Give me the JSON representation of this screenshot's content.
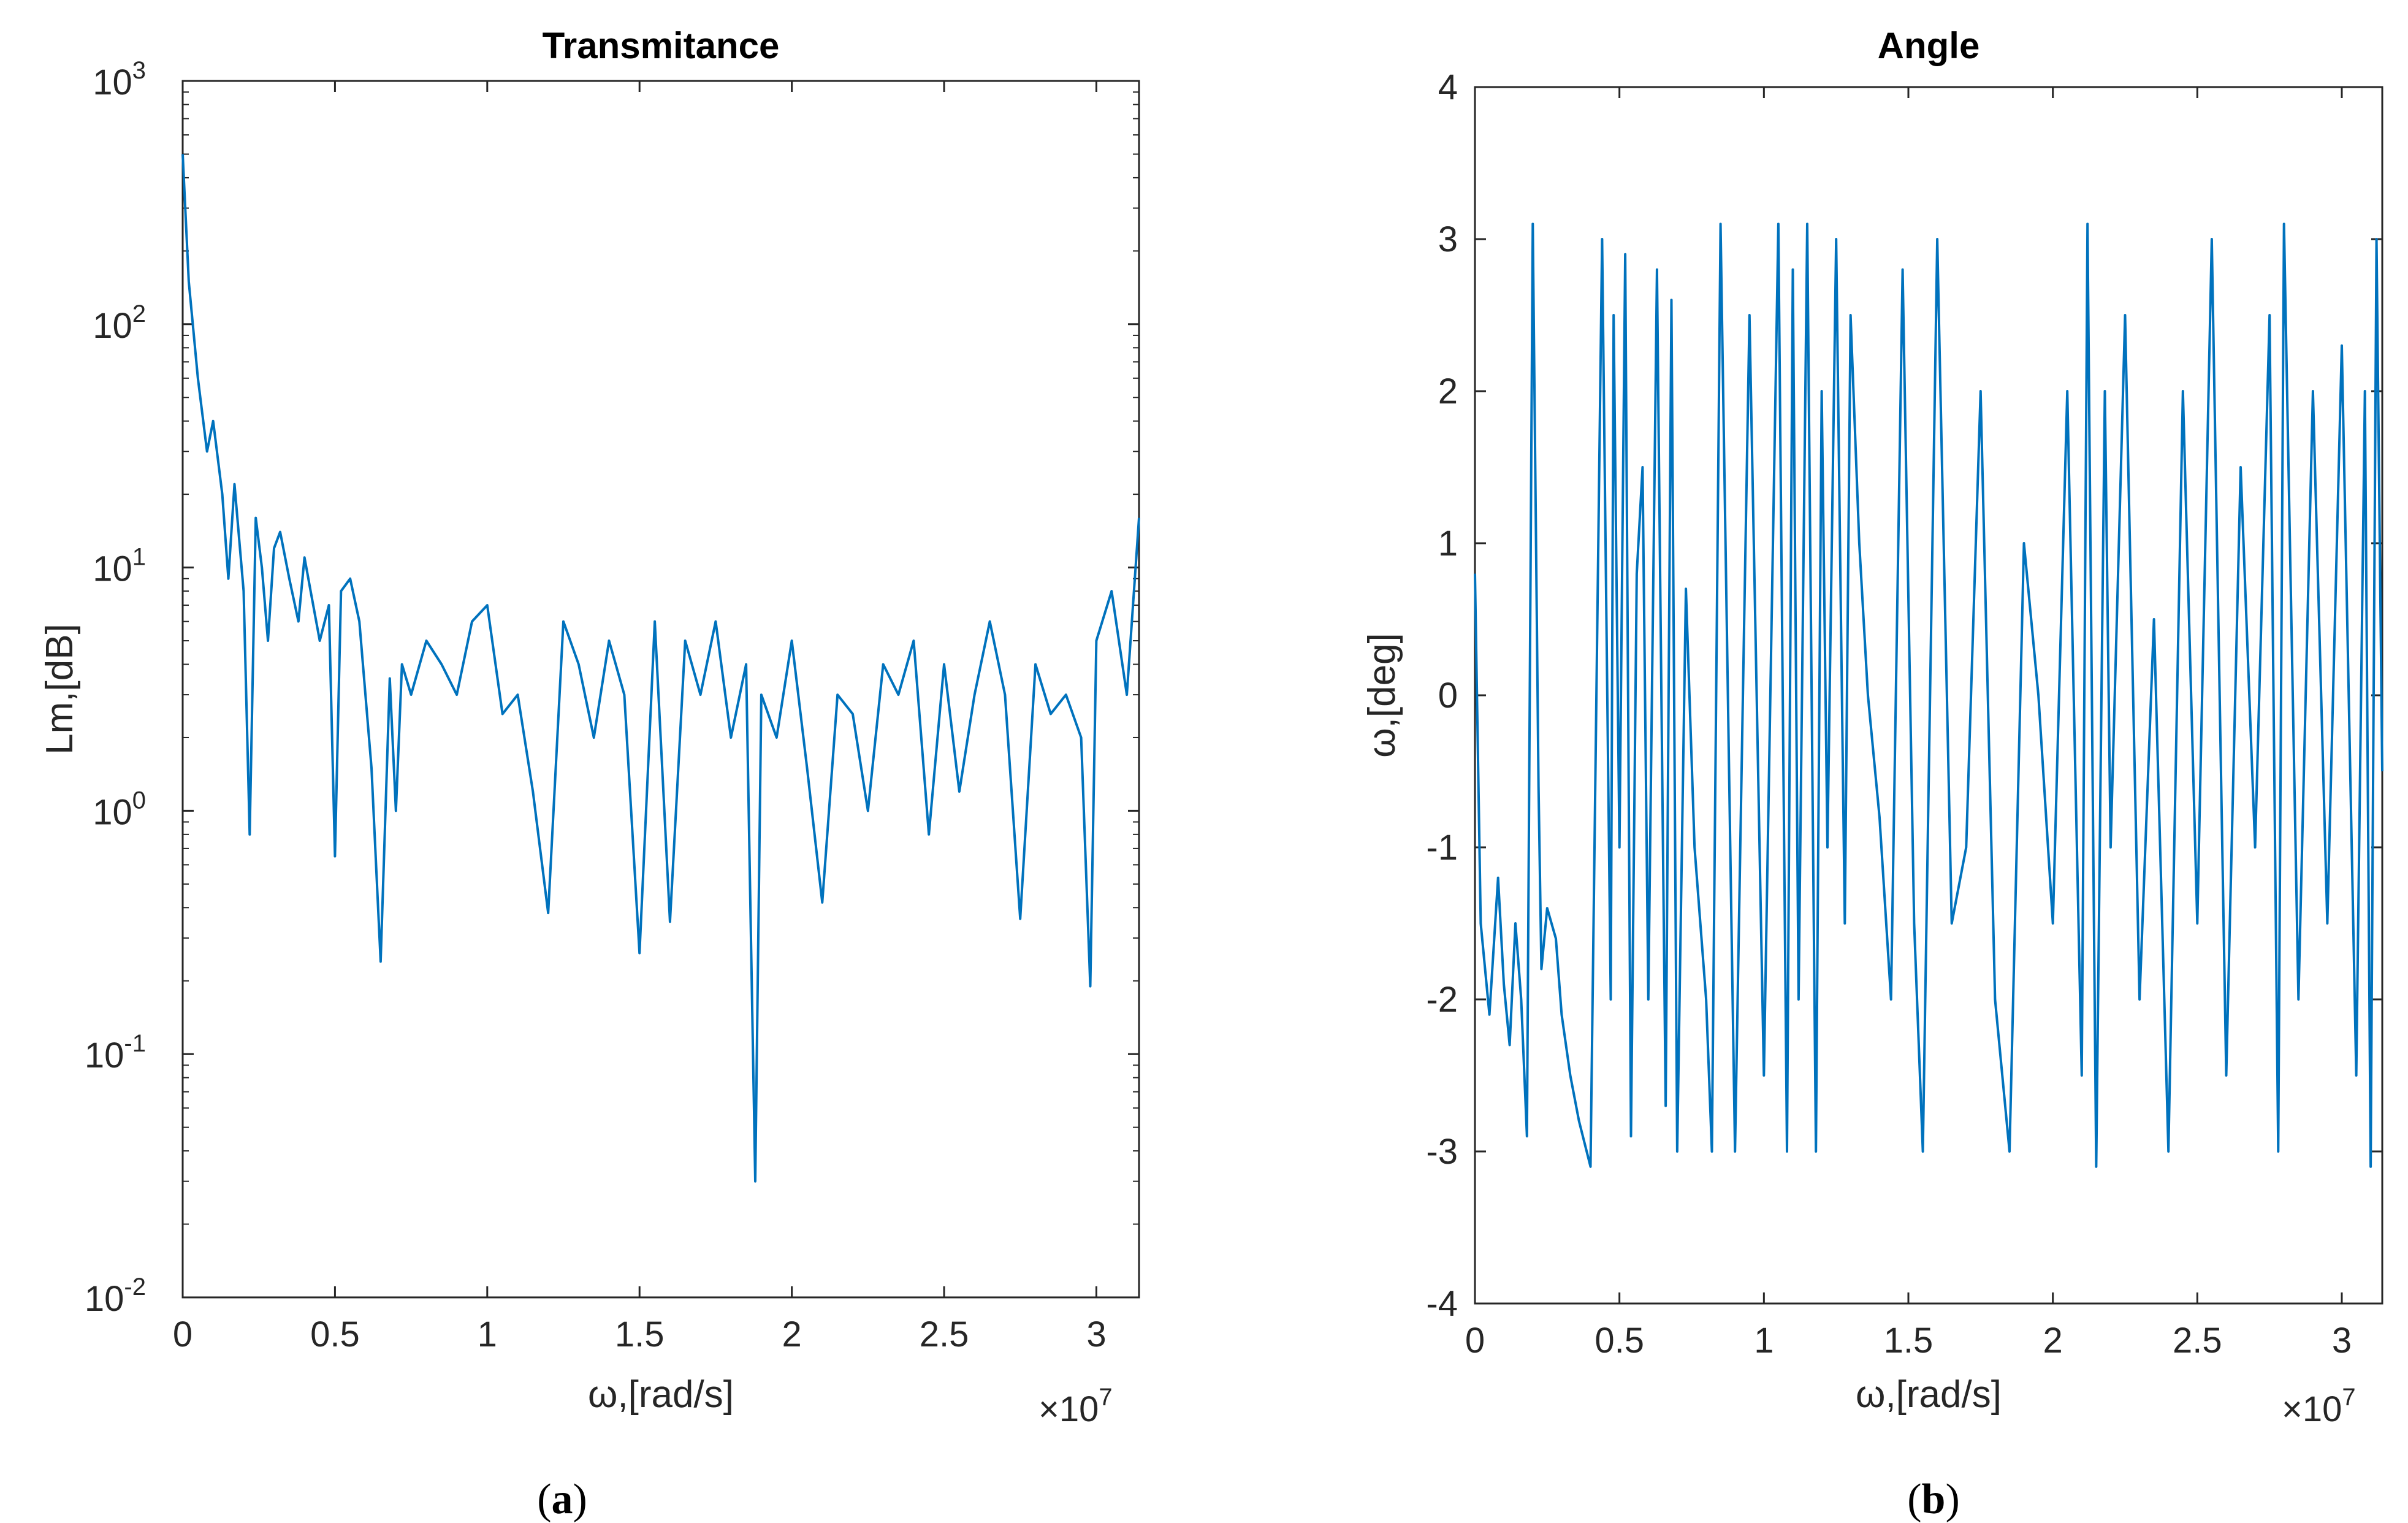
{
  "chart_data": [
    {
      "type": "line",
      "panel": "(a)",
      "panel_letter": "a",
      "title": "Transmitance",
      "xlabel": "ω,[rad/s]",
      "ylabel": "Lm,[dB]",
      "x_multiplier_base": "×10",
      "x_multiplier_exp": "7",
      "yscale": "log",
      "xlim": [
        0,
        3.14
      ],
      "ylim": [
        0.01,
        1000
      ],
      "x_ticks": [
        0,
        0.5,
        1,
        1.5,
        2,
        2.5,
        3
      ],
      "x_tick_labels": [
        "0",
        "0.5",
        "1",
        "1.5",
        "2",
        "2.5",
        "3"
      ],
      "y_ticks": [
        {
          "value": 0.01,
          "base": "10",
          "exp": "-2"
        },
        {
          "value": 0.1,
          "base": "10",
          "exp": "-1"
        },
        {
          "value": 1,
          "base": "10",
          "exp": "0"
        },
        {
          "value": 10,
          "base": "10",
          "exp": "1"
        },
        {
          "value": 100,
          "base": "10",
          "exp": "2"
        },
        {
          "value": 1000,
          "base": "10",
          "exp": "3"
        }
      ],
      "series_color": "#0072BD",
      "grid": false,
      "series": [
        {
          "name": "Transmitance",
          "x": [
            0.0,
            0.02,
            0.05,
            0.08,
            0.1,
            0.13,
            0.15,
            0.17,
            0.2,
            0.22,
            0.24,
            0.26,
            0.28,
            0.3,
            0.32,
            0.35,
            0.38,
            0.4,
            0.42,
            0.45,
            0.48,
            0.5,
            0.52,
            0.55,
            0.58,
            0.62,
            0.65,
            0.68,
            0.7,
            0.72,
            0.75,
            0.8,
            0.85,
            0.9,
            0.95,
            1.0,
            1.05,
            1.1,
            1.15,
            1.2,
            1.25,
            1.3,
            1.35,
            1.4,
            1.45,
            1.5,
            1.55,
            1.6,
            1.65,
            1.7,
            1.75,
            1.8,
            1.85,
            1.88,
            1.9,
            1.95,
            2.0,
            2.05,
            2.1,
            2.15,
            2.2,
            2.25,
            2.3,
            2.35,
            2.4,
            2.45,
            2.5,
            2.55,
            2.6,
            2.65,
            2.7,
            2.75,
            2.8,
            2.85,
            2.9,
            2.95,
            2.98,
            3.0,
            3.05,
            3.1,
            3.14
          ],
          "y": [
            500,
            150,
            60,
            30,
            40,
            20,
            9,
            22,
            8,
            0.8,
            16,
            10,
            5,
            12,
            14,
            9,
            6,
            11,
            8,
            5,
            7,
            0.65,
            8,
            9,
            6,
            1.5,
            0.24,
            3.5,
            1.0,
            4,
            3,
            5,
            4,
            3,
            6,
            7,
            2.5,
            3,
            1.2,
            0.38,
            6,
            4,
            2,
            5,
            3,
            0.26,
            6,
            0.35,
            5,
            3,
            6,
            2,
            4,
            0.03,
            3,
            2,
            5,
            1.5,
            0.42,
            3,
            2.5,
            1,
            4,
            3,
            5,
            0.8,
            4,
            1.2,
            3,
            6,
            3,
            0.36,
            4,
            2.5,
            3,
            2,
            0.19,
            5,
            8,
            3,
            16
          ]
        }
      ]
    },
    {
      "type": "line",
      "panel": "(b)",
      "panel_letter": "b",
      "title": "Angle",
      "xlabel": "ω,[rad/s]",
      "ylabel": "ω,[deg]",
      "x_multiplier_base": "×10",
      "x_multiplier_exp": "7",
      "yscale": "linear",
      "xlim": [
        0,
        3.14
      ],
      "ylim": [
        -4,
        4
      ],
      "x_ticks": [
        0,
        0.5,
        1,
        1.5,
        2,
        2.5,
        3
      ],
      "x_tick_labels": [
        "0",
        "0.5",
        "1",
        "1.5",
        "2",
        "2.5",
        "3"
      ],
      "y_ticks": [
        -4,
        -3,
        -2,
        -1,
        0,
        1,
        2,
        3,
        4
      ],
      "y_tick_labels": [
        "-4",
        "-3",
        "-2",
        "-1",
        "0",
        "1",
        "2",
        "3",
        "4"
      ],
      "series_color": "#0072BD",
      "grid": false,
      "series": [
        {
          "name": "Angle",
          "x": [
            0.0,
            0.02,
            0.05,
            0.08,
            0.1,
            0.12,
            0.14,
            0.16,
            0.18,
            0.2,
            0.22,
            0.23,
            0.25,
            0.28,
            0.3,
            0.33,
            0.36,
            0.4,
            0.44,
            0.47,
            0.48,
            0.5,
            0.52,
            0.54,
            0.56,
            0.58,
            0.6,
            0.63,
            0.66,
            0.68,
            0.7,
            0.73,
            0.76,
            0.8,
            0.82,
            0.85,
            0.9,
            0.95,
            1.0,
            1.05,
            1.08,
            1.1,
            1.12,
            1.15,
            1.18,
            1.2,
            1.22,
            1.25,
            1.28,
            1.3,
            1.33,
            1.36,
            1.4,
            1.44,
            1.48,
            1.52,
            1.55,
            1.6,
            1.65,
            1.7,
            1.75,
            1.8,
            1.85,
            1.9,
            1.95,
            2.0,
            2.05,
            2.1,
            2.12,
            2.15,
            2.18,
            2.2,
            2.25,
            2.3,
            2.35,
            2.4,
            2.45,
            2.5,
            2.55,
            2.6,
            2.65,
            2.7,
            2.75,
            2.78,
            2.8,
            2.85,
            2.9,
            2.95,
            3.0,
            3.05,
            3.08,
            3.1,
            3.12,
            3.14
          ],
          "y": [
            0.8,
            -1.5,
            -2.1,
            -1.2,
            -1.9,
            -2.3,
            -1.5,
            -2.0,
            -2.9,
            3.1,
            -0.6,
            -1.8,
            -1.4,
            -1.6,
            -2.1,
            -2.5,
            -2.8,
            -3.1,
            3.0,
            -2.0,
            2.5,
            -1.0,
            2.9,
            -2.9,
            0.8,
            1.5,
            -2.0,
            2.8,
            -2.7,
            2.6,
            -3.0,
            0.7,
            -1.0,
            -2.0,
            -3.0,
            3.1,
            -3.0,
            2.5,
            -2.5,
            3.1,
            -3.0,
            2.8,
            -2.0,
            3.1,
            -3.0,
            2.0,
            -1.0,
            3.0,
            -1.5,
            2.5,
            1.0,
            0.0,
            -0.8,
            -2.0,
            2.8,
            -1.5,
            -3.0,
            3.0,
            -1.5,
            -1.0,
            2.0,
            -2.0,
            -3.0,
            1.0,
            0.0,
            -1.5,
            2.0,
            -2.5,
            3.1,
            -3.1,
            2.0,
            -1.0,
            2.5,
            -2.0,
            0.5,
            -3.0,
            2.0,
            -1.5,
            3.0,
            -2.5,
            1.5,
            -1.0,
            2.5,
            -3.0,
            3.1,
            -2.0,
            2.0,
            -1.5,
            2.3,
            -2.5,
            2.0,
            -3.1,
            3.0,
            -0.5
          ]
        }
      ]
    }
  ]
}
